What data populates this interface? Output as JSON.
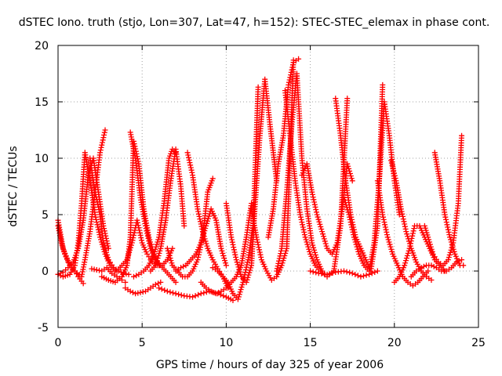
{
  "chart_data": {
    "type": "scatter",
    "title": "dSTEC Iono. truth (stjo, Lon=307, Lat=47, h=152): STEC-STEC_elemax in phase cont.",
    "xlabel": "GPS time / hours of day 325 of year 2006",
    "ylabel": "dSTEC  / TECUs",
    "xlim": [
      0,
      25
    ],
    "ylim": [
      -5,
      20
    ],
    "x_ticks": [
      0,
      5,
      10,
      15,
      20,
      25
    ],
    "y_ticks": [
      -5,
      0,
      5,
      10,
      15,
      20
    ],
    "x_tick_labels": [
      "0",
      "5",
      "10",
      "15",
      "20",
      "25"
    ],
    "y_tick_labels": [
      "-5",
      "0",
      "5",
      "10",
      "15",
      "20"
    ],
    "grid": true,
    "marker": "plus",
    "color": "#ff0000",
    "series": [
      {
        "x": [
          0.0,
          0.3,
          0.7,
          1.0,
          1.4,
          1.6,
          1.9,
          2.2,
          2.5,
          2.8
        ],
        "y": [
          4.5,
          2.0,
          0.5,
          0.0,
          -0.5,
          1.0,
          3.5,
          7.0,
          10.5,
          12.5
        ]
      },
      {
        "x": [
          0.0,
          0.3,
          0.7,
          1.0,
          1.2,
          1.4,
          1.6,
          1.9,
          2.2,
          2.5,
          2.8,
          3.1,
          3.4
        ],
        "y": [
          -0.3,
          -0.5,
          -0.3,
          0.5,
          2.5,
          6.0,
          10.5,
          8.0,
          5.0,
          3.0,
          1.5,
          0.5,
          0.0
        ]
      },
      {
        "x": [
          0.0,
          0.2,
          0.4,
          0.6,
          0.8,
          1.0,
          1.2,
          1.4,
          1.5
        ],
        "y": [
          4.0,
          2.5,
          1.5,
          0.8,
          0.3,
          0.0,
          -0.5,
          -0.9,
          -1.1
        ]
      },
      {
        "x": [
          0.0,
          0.3,
          0.6,
          0.9,
          1.2,
          1.5,
          1.8,
          2.1,
          2.4,
          2.7,
          3.0
        ],
        "y": [
          -0.3,
          -0.1,
          0.3,
          0.8,
          2.0,
          4.5,
          8.5,
          10.0,
          7.0,
          4.0,
          2.0
        ]
      },
      {
        "x": [
          1.9,
          2.2,
          2.5,
          2.7,
          3.0,
          3.3,
          3.6,
          3.9,
          4.2
        ],
        "y": [
          10.0,
          7.0,
          5.0,
          2.5,
          1.0,
          0.3,
          0.0,
          -0.2,
          -0.3
        ]
      },
      {
        "x": [
          2.0,
          2.3,
          2.6,
          2.9,
          3.2,
          3.5,
          3.8,
          4.0
        ],
        "y": [
          0.2,
          0.1,
          0.0,
          0.3,
          -0.2,
          -0.5,
          -0.8,
          -1.0
        ]
      },
      {
        "x": [
          2.6,
          3.0,
          3.4,
          3.8,
          4.1,
          4.3,
          4.5,
          4.8,
          5.1,
          5.4,
          5.7,
          6.0
        ],
        "y": [
          -0.5,
          -0.8,
          -1.0,
          -0.5,
          0.5,
          3.0,
          11.5,
          9.5,
          5.5,
          3.0,
          1.5,
          0.5
        ]
      },
      {
        "x": [
          4.3,
          4.6,
          4.9,
          5.2,
          5.5,
          5.8,
          6.1,
          6.4,
          6.7,
          7.0
        ],
        "y": [
          12.3,
          10.0,
          6.5,
          4.0,
          2.0,
          1.0,
          0.5,
          0.0,
          -0.5,
          -1.0
        ]
      },
      {
        "x": [
          4.0,
          4.3,
          4.6,
          4.9,
          5.2,
          5.5,
          5.8,
          6.1
        ],
        "y": [
          -1.5,
          -1.8,
          -2.0,
          -1.9,
          -1.8,
          -1.5,
          -1.2,
          -1.0
        ]
      },
      {
        "x": [
          3.5,
          3.8,
          4.1,
          4.4,
          4.7,
          5.0,
          5.3,
          5.6,
          5.9,
          6.2,
          6.5,
          6.8
        ],
        "y": [
          0.0,
          0.5,
          1.0,
          2.5,
          4.5,
          2.5,
          1.5,
          0.8,
          0.5,
          0.5,
          1.0,
          2.0
        ]
      },
      {
        "x": [
          4.5,
          4.8,
          5.1,
          5.4,
          5.7,
          6.0,
          6.3,
          6.6,
          6.8,
          7.0
        ],
        "y": [
          -0.5,
          -0.3,
          0.0,
          0.5,
          1.5,
          3.0,
          6.0,
          10.0,
          10.8,
          10.5
        ]
      },
      {
        "x": [
          5.5,
          5.8,
          6.1,
          6.4,
          6.7,
          7.0,
          7.3,
          7.5
        ],
        "y": [
          0.0,
          0.5,
          2.0,
          4.5,
          8.0,
          10.8,
          7.5,
          4.0
        ]
      },
      {
        "x": [
          6.5,
          6.8,
          7.1,
          7.4,
          7.7,
          8.0,
          8.3,
          8.6,
          8.9,
          9.2
        ],
        "y": [
          2.0,
          0.5,
          0.0,
          -0.5,
          -0.5,
          0.0,
          1.0,
          3.0,
          7.0,
          8.2
        ]
      },
      {
        "x": [
          7.7,
          8.0,
          8.3,
          8.6,
          8.9,
          9.2,
          9.5,
          9.8,
          10.1
        ],
        "y": [
          10.5,
          8.5,
          5.5,
          3.5,
          2.0,
          1.0,
          0.2,
          -0.5,
          -1.5
        ]
      },
      {
        "x": [
          6.0,
          6.5,
          7.0,
          7.5,
          8.0,
          8.5,
          9.0,
          9.5,
          10.0,
          10.4
        ],
        "y": [
          -1.5,
          -1.8,
          -2.0,
          -2.2,
          -2.3,
          -2.0,
          -1.8,
          -2.0,
          -2.3,
          -2.6
        ]
      },
      {
        "x": [
          9.2,
          9.5,
          9.8,
          10.1,
          10.4,
          10.7,
          11.0,
          11.3,
          11.6,
          11.9
        ],
        "y": [
          0.3,
          0.0,
          -0.5,
          -1.0,
          -2.0,
          -2.5,
          -1.0,
          1.0,
          4.0,
          16.3
        ]
      },
      {
        "x": [
          10.0,
          10.3,
          10.6,
          10.9,
          11.2,
          11.5,
          11.7,
          12.0,
          12.3,
          12.6,
          13.0
        ],
        "y": [
          6.0,
          3.0,
          1.0,
          -0.5,
          -1.0,
          0.5,
          5.5,
          12.0,
          17.0,
          13.0,
          8.0
        ]
      },
      {
        "x": [
          11.5,
          11.8,
          12.1,
          12.4,
          12.7,
          13.0,
          13.3,
          13.6,
          14.0
        ],
        "y": [
          5.5,
          3.0,
          1.0,
          0.0,
          -0.8,
          -0.5,
          0.5,
          2.0,
          18.7
        ]
      },
      {
        "x": [
          12.5,
          12.8,
          13.1,
          13.4,
          13.7,
          14.0,
          14.3
        ],
        "y": [
          3.0,
          5.5,
          9.5,
          12.0,
          16.5,
          18.5,
          18.8
        ]
      },
      {
        "x": [
          13.0,
          13.3,
          13.6,
          13.9,
          14.2,
          14.5,
          14.8,
          15.1,
          15.4,
          15.7
        ],
        "y": [
          0.0,
          2.0,
          7.0,
          13.0,
          17.5,
          10.0,
          5.5,
          2.5,
          1.0,
          0.0
        ]
      },
      {
        "x": [
          13.5,
          13.8,
          14.1,
          14.4,
          14.7,
          15.0,
          15.3,
          15.6,
          16.0,
          16.4,
          16.8,
          17.2
        ],
        "y": [
          16.0,
          12.0,
          8.0,
          5.0,
          3.0,
          1.5,
          0.5,
          0.0,
          -0.5,
          0.0,
          4.0,
          15.3
        ]
      },
      {
        "x": [
          14.5,
          14.8,
          15.1,
          15.4,
          15.7,
          16.0,
          16.3,
          16.6,
          16.9,
          17.2,
          17.5
        ],
        "y": [
          8.5,
          9.5,
          7.0,
          5.0,
          3.5,
          2.0,
          1.5,
          2.5,
          5.5,
          9.5,
          8.0
        ]
      },
      {
        "x": [
          16.5,
          16.8,
          17.1,
          17.4,
          17.7,
          18.0,
          18.3,
          18.6,
          19.0,
          19.3
        ],
        "y": [
          15.3,
          12.0,
          8.0,
          5.0,
          3.0,
          2.0,
          1.0,
          0.0,
          4.0,
          16.5
        ]
      },
      {
        "x": [
          17.0,
          17.3,
          17.6,
          17.9,
          18.2,
          18.5,
          18.8,
          19.1,
          19.4,
          19.7,
          20.0,
          20.3
        ],
        "y": [
          6.5,
          5.0,
          3.0,
          1.5,
          0.5,
          0.0,
          2.5,
          8.0,
          15.0,
          12.0,
          8.0,
          5.0
        ]
      },
      {
        "x": [
          19.0,
          19.3,
          19.6,
          19.9,
          20.2,
          20.5,
          20.8,
          21.1,
          21.4,
          21.7,
          22.0
        ],
        "y": [
          8.0,
          5.0,
          3.0,
          1.5,
          0.5,
          -0.5,
          -1.0,
          -1.3,
          -1.0,
          -0.5,
          0.0
        ]
      },
      {
        "x": [
          19.8,
          20.1,
          20.4,
          20.7,
          21.0,
          21.3,
          21.6,
          21.9,
          22.2
        ],
        "y": [
          9.8,
          8.0,
          5.5,
          3.5,
          2.0,
          0.8,
          0.0,
          -0.5,
          -0.8
        ]
      },
      {
        "x": [
          20.0,
          20.3,
          20.6,
          20.9,
          21.2,
          21.5,
          21.8,
          22.1,
          22.4,
          22.7,
          23.0
        ],
        "y": [
          -1.0,
          -0.5,
          0.5,
          2.0,
          4.0,
          4.0,
          3.0,
          2.0,
          1.0,
          0.5,
          0.0
        ]
      },
      {
        "x": [
          21.8,
          22.0,
          22.3,
          22.6,
          22.9,
          23.2,
          23.5,
          23.8,
          24.0
        ],
        "y": [
          4.0,
          3.0,
          1.5,
          0.8,
          0.5,
          1.0,
          2.5,
          6.0,
          12.0
        ]
      },
      {
        "x": [
          22.4,
          22.7,
          23.0,
          23.3,
          23.6,
          23.9,
          24.1
        ],
        "y": [
          10.5,
          8.0,
          5.0,
          3.0,
          1.5,
          0.5,
          0.5
        ]
      },
      {
        "x": [
          21.0,
          21.3,
          21.6,
          21.9,
          22.2,
          22.5,
          22.8,
          23.1,
          23.4,
          23.7,
          24.0
        ],
        "y": [
          -0.5,
          0.0,
          0.3,
          0.5,
          0.5,
          0.3,
          0.0,
          0.0,
          0.3,
          0.8,
          1.0
        ]
      },
      {
        "x": [
          15.0,
          15.5,
          16.0,
          16.5,
          17.0,
          17.5,
          18.0,
          18.5,
          19.0
        ],
        "y": [
          0.0,
          -0.2,
          -0.3,
          -0.1,
          0.0,
          -0.2,
          -0.5,
          -0.3,
          0.0
        ]
      },
      {
        "x": [
          7.0,
          7.3,
          7.6,
          7.9,
          8.2,
          8.5,
          8.8,
          9.1,
          9.4,
          9.7,
          10.0
        ],
        "y": [
          0.0,
          0.3,
          0.5,
          1.0,
          1.5,
          2.5,
          4.0,
          5.5,
          4.5,
          2.0,
          0.5
        ]
      },
      {
        "x": [
          8.5,
          8.8,
          9.1,
          9.4,
          9.7,
          10.0,
          10.3,
          10.6,
          10.9,
          11.2,
          11.5
        ],
        "y": [
          -1.0,
          -1.5,
          -1.8,
          -2.0,
          -1.8,
          -1.5,
          -1.0,
          -0.5,
          0.5,
          3.0,
          6.0
        ]
      }
    ]
  }
}
